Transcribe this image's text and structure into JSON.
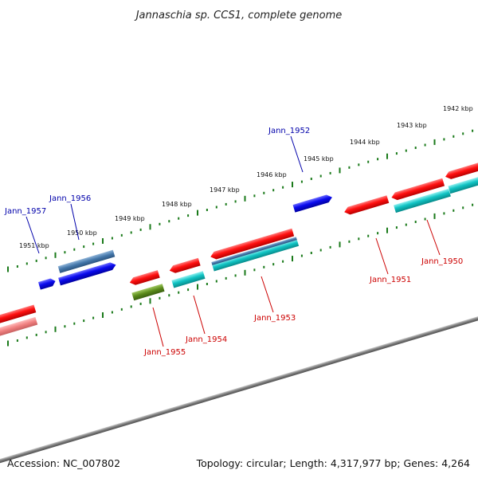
{
  "title": "Jannaschia sp. CCS1, complete genome",
  "accession": "Accession: NC_007802",
  "topology": "Topology: circular; Length: 4,317,977 bp; Genes: 4,264",
  "colors": {
    "backbone": "#7a7a7a",
    "tick": "#1a7a1a",
    "forward_label": "#0000aa",
    "reverse_label": "#cc0000",
    "red": "#ff1a1a",
    "pink": "#f08080",
    "blue": "#0a0aee",
    "steelblue": "#4477aa",
    "cyan": "#11c4c4",
    "olive": "#5a8a1a"
  },
  "kbp_ticks": [
    "1942 kbp",
    "1943 kbp",
    "1944 kbp",
    "1945 kbp",
    "1946 kbp",
    "1947 kbp",
    "1948 kbp",
    "1949 kbp",
    "1950 kbp",
    "1951 kbp"
  ],
  "genes": [
    {
      "label": "Jann_1957",
      "strand": "forward"
    },
    {
      "label": "Jann_1956",
      "strand": "forward"
    },
    {
      "label": "Jann_1952",
      "strand": "forward"
    },
    {
      "label": "Jann_1955",
      "strand": "reverse"
    },
    {
      "label": "Jann_1954",
      "strand": "reverse"
    },
    {
      "label": "Jann_1953",
      "strand": "reverse"
    },
    {
      "label": "Jann_1951",
      "strand": "reverse"
    },
    {
      "label": "Jann_1950",
      "strand": "reverse"
    }
  ]
}
